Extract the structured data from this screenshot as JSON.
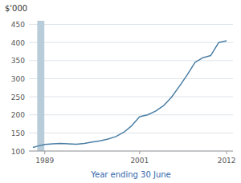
{
  "chart_data": {
    "type": "line",
    "ylabel": "$'000",
    "xlabel": "Year ending 30 June",
    "x": [
      1987.5,
      1988,
      1989,
      1990,
      1991,
      1992,
      1993,
      1994,
      1995,
      1996,
      1997,
      1998,
      1999,
      2000,
      2001,
      2002,
      2003,
      2004,
      2005,
      2006,
      2007,
      2008,
      2009,
      2010,
      2011,
      2012
    ],
    "values": [
      110,
      113,
      118,
      120,
      121,
      120,
      119,
      121,
      125,
      128,
      133,
      140,
      152,
      170,
      195,
      200,
      210,
      225,
      248,
      278,
      310,
      345,
      358,
      364,
      400,
      405
    ],
    "color": "#4a7fa5",
    "xlim": [
      1987.0,
      2012.8
    ],
    "ylim": [
      100,
      460
    ],
    "xticks": [
      1989,
      2001,
      2012
    ],
    "yticks": [
      100,
      150,
      200,
      250,
      300,
      350,
      400,
      450
    ],
    "grid": true,
    "span": {
      "x": [
        1988.05,
        1988.95
      ],
      "color": "#b8cdd9"
    }
  }
}
